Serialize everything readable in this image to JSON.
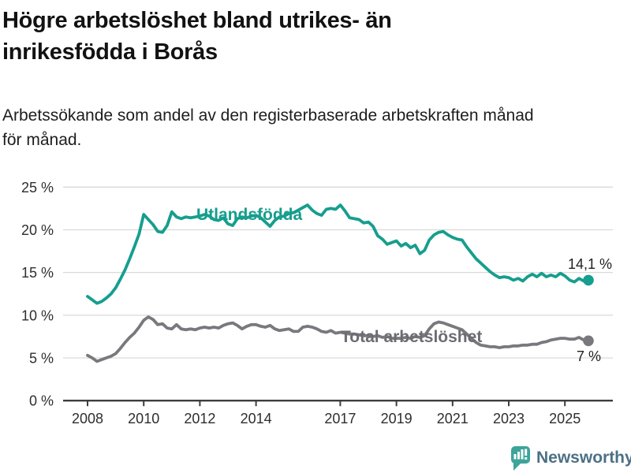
{
  "header": {
    "title_lines": [
      "Högre arbetslöshet bland utrikes- än",
      "inrikesfödda i Borås"
    ],
    "subtitle_lines": [
      "Arbetssökande som andel av den registerbaserade arbetskraften månad",
      "för månad."
    ]
  },
  "chart_data": {
    "type": "line",
    "title": "Högre arbetslöshet bland utrikes- än inrikesfödda i Borås",
    "subtitle": "Arbetssökande som andel av den registerbaserade arbetskraften månad för månad.",
    "unit": "%",
    "x_start_year": 2008,
    "x_step_years": 0.1667,
    "x_end_year": 2025.83,
    "ylim": [
      0,
      25
    ],
    "grid": true,
    "legend_position": "inline-labels",
    "y_tick_values": [
      0,
      5,
      10,
      15,
      20,
      25
    ],
    "y_tick_labels": [
      "0 %",
      "5 %",
      "10 %",
      "15 %",
      "20 %",
      "25 %"
    ],
    "x_tick_years": [
      2008,
      2010,
      2012,
      2014,
      2017,
      2019,
      2021,
      2023,
      2025
    ],
    "x_tick_labels": [
      "2008",
      "2010",
      "2012",
      "2014",
      "2017",
      "2019",
      "2021",
      "2023",
      "2025"
    ],
    "series": [
      {
        "name": "Utlandsfödda",
        "color": "#169e8e",
        "end_label": "14,1 %",
        "end_value": 14.1,
        "values": [
          12.2,
          11.8,
          11.4,
          11.6,
          12.0,
          12.5,
          13.2,
          14.2,
          15.3,
          16.6,
          18.0,
          19.5,
          21.8,
          21.2,
          20.6,
          19.8,
          19.7,
          20.5,
          22.1,
          21.5,
          21.3,
          21.5,
          21.4,
          21.5,
          21.6,
          21.8,
          21.6,
          21.2,
          21.1,
          21.4,
          20.7,
          20.5,
          21.3,
          21.5,
          21.4,
          21.6,
          21.7,
          21.4,
          20.9,
          20.4,
          21.1,
          21.5,
          21.6,
          21.9,
          22.0,
          22.3,
          22.6,
          22.9,
          22.3,
          21.9,
          21.7,
          22.4,
          22.5,
          22.4,
          22.9,
          22.2,
          21.4,
          21.3,
          21.2,
          20.8,
          20.9,
          20.4,
          19.3,
          18.9,
          18.3,
          18.5,
          18.7,
          18.1,
          18.4,
          17.9,
          18.2,
          17.2,
          17.6,
          18.8,
          19.4,
          19.7,
          19.8,
          19.4,
          19.1,
          18.9,
          18.8,
          18.0,
          17.3,
          16.6,
          16.1,
          15.6,
          15.1,
          14.7,
          14.4,
          14.5,
          14.4,
          14.1,
          14.3,
          14.0,
          14.5,
          14.8,
          14.5,
          14.9,
          14.5,
          14.7,
          14.5,
          14.9,
          14.6,
          14.1,
          13.9,
          14.3,
          14.0,
          14.1
        ]
      },
      {
        "name": "Total arbetslöshet",
        "color": "#78787d",
        "end_label": "7 %",
        "end_value": 7.0,
        "values": [
          5.3,
          5.0,
          4.6,
          4.8,
          5.0,
          5.2,
          5.5,
          6.1,
          6.8,
          7.4,
          7.9,
          8.6,
          9.4,
          9.8,
          9.5,
          8.9,
          9.0,
          8.5,
          8.4,
          8.9,
          8.4,
          8.3,
          8.4,
          8.3,
          8.5,
          8.6,
          8.5,
          8.6,
          8.5,
          8.8,
          9.0,
          9.1,
          8.8,
          8.4,
          8.7,
          8.9,
          8.9,
          8.7,
          8.6,
          8.8,
          8.4,
          8.2,
          8.3,
          8.4,
          8.1,
          8.1,
          8.6,
          8.7,
          8.6,
          8.4,
          8.1,
          8.0,
          8.2,
          7.9,
          8.0,
          7.9,
          7.8,
          7.8,
          7.7,
          7.6,
          7.6,
          7.5,
          7.6,
          7.4,
          7.5,
          7.3,
          7.3,
          7.3,
          7.4,
          7.3,
          7.5,
          7.4,
          7.6,
          8.4,
          9.0,
          9.2,
          9.1,
          8.9,
          8.7,
          8.5,
          8.3,
          7.8,
          7.3,
          6.8,
          6.5,
          6.4,
          6.3,
          6.3,
          6.2,
          6.3,
          6.3,
          6.4,
          6.4,
          6.5,
          6.5,
          6.6,
          6.6,
          6.8,
          6.9,
          7.1,
          7.2,
          7.3,
          7.3,
          7.2,
          7.2,
          7.4,
          7.1,
          7.0
        ]
      }
    ]
  },
  "footer": {
    "brand": "Newsworthy",
    "brand_color": "#4c7086",
    "icon_color": "#3da49b",
    "icon": "bar-chart-speech-bubble"
  }
}
